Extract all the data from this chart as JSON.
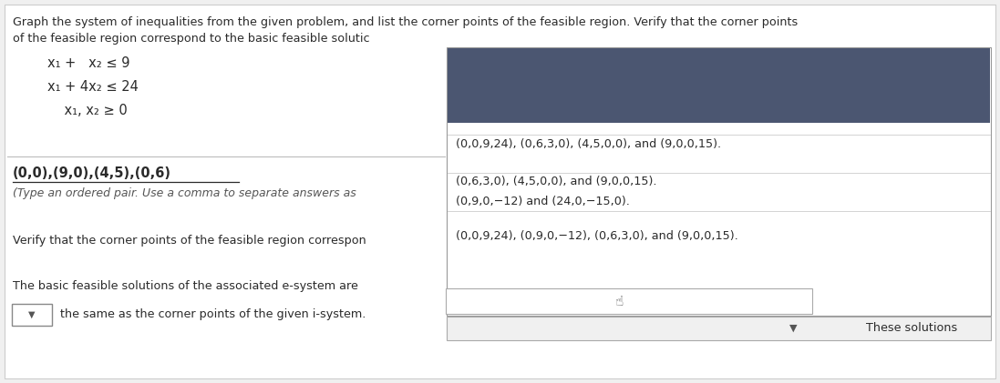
{
  "bg_color": "#f0f0f0",
  "title_text": "Graph the system of inequalities from the given problem, and list the corner points of the feasible region. Verify that the corner points",
  "title_text2": "of the feasible region correspond to the basic feasible solutic",
  "eq1": "x₁ +   x₂ ≤ 9",
  "eq2": "x₁ + 4x₂ ≤ 24",
  "eq3": "    x₁, x₂ ≥ 0",
  "answer_bold": "(0,0),(9,0),(4,5),(0,6)",
  "answer_sub1": "(Type an ordered pair. Use a comma to separate answers as",
  "verify_text": "Verify that the corner points of the feasible region correspon",
  "basic_text": "The basic feasible solutions of the associated e-system are",
  "same_text": " the same as the corner points of the given i-system.",
  "dropdown_dark_bg": "#4b5671",
  "option1": "(0,0,9,24), (0,6,3,0), (4,5,0,0), and (9,0,0,15).",
  "option2": "(0,6,3,0), (4,5,0,0), and (9,0,0,15).",
  "option3": "(0,9,0,−12) and (24,0,−15,0).",
  "option4": "(0,0,9,24), (0,9,0,−12), (0,6,3,0), and (9,0,0,15).",
  "these_solutions": "These solutions",
  "text_color": "#2a2a2a",
  "light_text": "#555555"
}
